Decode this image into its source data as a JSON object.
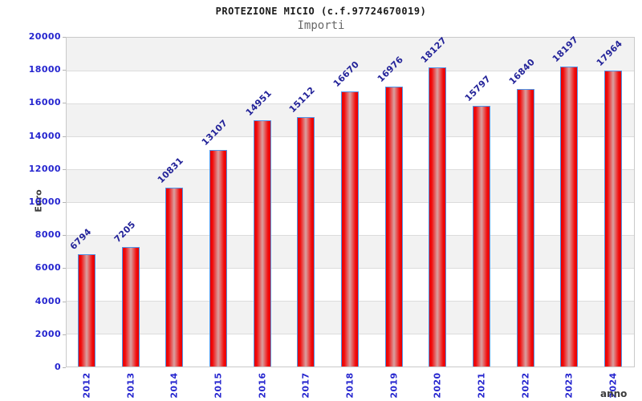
{
  "chart_data": {
    "type": "bar",
    "title": "PROTEZIONE MICIO (c.f.97724670019)",
    "subtitle": "Importi",
    "xlabel": "anno",
    "ylabel": "Euro",
    "categories": [
      "2012",
      "2013",
      "2014",
      "2015",
      "2016",
      "2017",
      "2018",
      "2019",
      "2020",
      "2021",
      "2022",
      "2023",
      "2024"
    ],
    "values": [
      6794,
      7205,
      10831,
      13107,
      14951,
      15112,
      16670,
      16976,
      18127,
      15797,
      16840,
      18197,
      17964
    ],
    "ylim": [
      0,
      20000
    ],
    "ytick_step": 2000,
    "grid": true,
    "legend": "none",
    "colors": {
      "bar_border": "#4f94e8",
      "bar_edge": "#e60000",
      "bar_mid": "#f20c0c",
      "bar_highlight": "#d9a1a1",
      "tick_labels": "#2525cf",
      "value_labels": "#232399",
      "axis_titles": "#3c3c3c",
      "title": "#1a1a1a",
      "subtitle": "#686868",
      "band_gray": "#f2f2f2",
      "band_white": "#ffffff",
      "gridline": "#dcdcdc",
      "plot_border": "#c9c9c9"
    }
  }
}
